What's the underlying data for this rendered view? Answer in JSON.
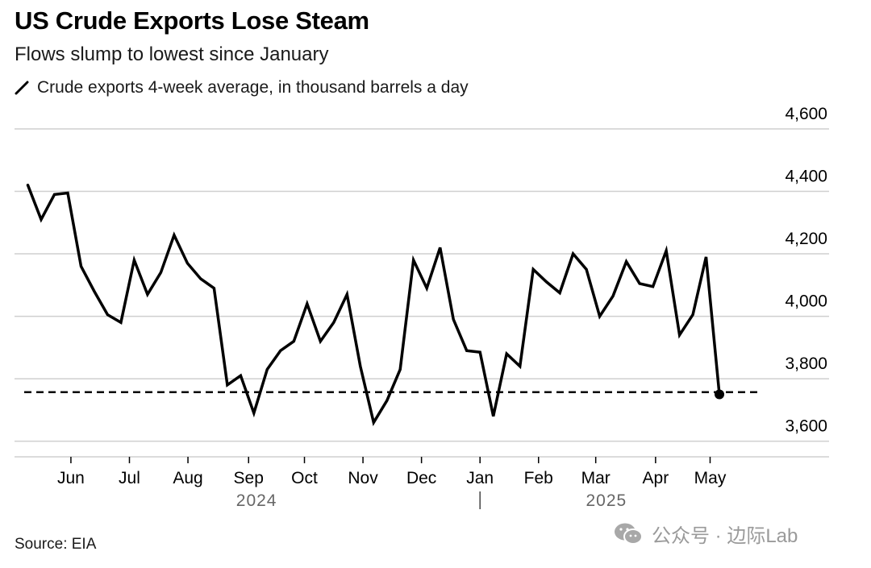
{
  "title": "US Crude Exports Lose Steam",
  "subtitle": "Flows slump to lowest since January",
  "legend_label": "Crude exports 4-week average, in thousand barrels a day",
  "source": "Source: EIA",
  "watermark": "公众号 · 边际Lab",
  "watermark_icon": "wechat-icon",
  "colors": {
    "line": "#000000",
    "grid": "#cfcfcf",
    "text": "#000000",
    "year": "#666666"
  },
  "chart_data": {
    "type": "line",
    "ylim": [
      3550,
      4600
    ],
    "yticks": [
      3600,
      3800,
      4000,
      4200,
      4400,
      4600
    ],
    "ytick_labels": [
      "3,600",
      "3,800",
      "4,000",
      "4,200",
      "4,400",
      "4,600"
    ],
    "grid": true,
    "y_axis_position": "right",
    "month_labels": [
      {
        "label": "Jun",
        "x": 3.24
      },
      {
        "label": "Jul",
        "x": 7.64
      },
      {
        "label": "Aug",
        "x": 12.04
      },
      {
        "label": "Sep",
        "x": 16.6
      },
      {
        "label": "Oct",
        "x": 20.8
      },
      {
        "label": "Nov",
        "x": 25.2
      },
      {
        "label": "Dec",
        "x": 29.6
      },
      {
        "label": "Jan",
        "x": 34.0
      },
      {
        "label": "Feb",
        "x": 38.4
      },
      {
        "label": "Mar",
        "x": 42.7
      },
      {
        "label": "Apr",
        "x": 47.2
      },
      {
        "label": "May",
        "x": 51.3
      }
    ],
    "year_labels": [
      {
        "label": "2024",
        "x": 17.2
      },
      {
        "label": "2025",
        "x": 43.5
      }
    ],
    "year_divider_x": 34.0,
    "x_range": [
      -1.0,
      56.0
    ],
    "series": [
      {
        "values": [
          4420,
          4310,
          4390,
          4395,
          4160,
          4080,
          4005,
          3980,
          4180,
          4070,
          4140,
          4260,
          4170,
          4120,
          4090,
          3780,
          3810,
          3690,
          3830,
          3890,
          3920,
          4040,
          3920,
          3980,
          4070,
          3840,
          3660,
          3730,
          3830,
          4180,
          4090,
          4220,
          3990,
          3890,
          3885,
          3680,
          3880,
          3840,
          4150,
          4110,
          4075,
          4200,
          4150,
          4000,
          4065,
          4175,
          4105,
          4095,
          4210,
          3940,
          4005,
          4190,
          3750
        ]
      }
    ],
    "reference_line": {
      "value": 3757,
      "style": "dashed"
    },
    "end_marker": true
  }
}
